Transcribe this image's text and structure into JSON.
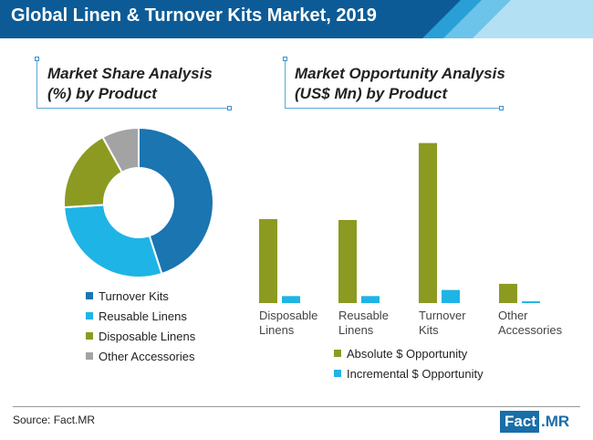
{
  "header": {
    "title": "Global Linen & Turnover Kits Market, 2019",
    "colors": {
      "band": "#0d5b96",
      "stripe_1": "#2a9fd6",
      "stripe_2": "#6cc4ea",
      "stripe_3": "#b4e0f4"
    }
  },
  "pie_section": {
    "title_line1": "Market Share Analysis",
    "title_line2": "(%) by Product"
  },
  "bar_section": {
    "title_line1": "Market Opportunity Analysis",
    "title_line2": "(US$ Mn) by Product"
  },
  "chart_data": [
    {
      "type": "pie",
      "donut": true,
      "title": "Market Share Analysis (%) by Product",
      "labels": [
        "Turnover Kits",
        "Reusable Linens",
        "Disposable Linens",
        "Other Accessories"
      ],
      "values": [
        45,
        29,
        18,
        8
      ],
      "colors": [
        "#1a75b0",
        "#1fb4e6",
        "#8c9a22",
        "#a3a3a3"
      ],
      "legend_position": "bottom"
    },
    {
      "type": "bar",
      "title": "Market Opportunity Analysis (US$ Mn) by Product",
      "categories": [
        "Disposable Linens",
        "Reusable Linens",
        "Turnover Kits",
        "Other Accessories"
      ],
      "category_lines": [
        [
          "Disposable",
          "Linens"
        ],
        [
          "Reusable",
          "Linens"
        ],
        [
          "Turnover",
          "Kits"
        ],
        [
          "Other",
          "Accessories"
        ]
      ],
      "series": [
        {
          "name": "Absolute $ Opportunity",
          "values": [
            96,
            95,
            183,
            22
          ],
          "color": "#8c9a22"
        },
        {
          "name": "Incremental $ Opportunity",
          "values": [
            8,
            8,
            15,
            2
          ],
          "color": "#1fb4e6"
        }
      ],
      "ylim": [
        0,
        190
      ],
      "axes_visible": false,
      "grid": false,
      "legend_position": "bottom"
    }
  ],
  "footer": {
    "source": "Source: Fact.MR",
    "logo_part1": "Fact",
    "logo_part2": ".MR"
  }
}
